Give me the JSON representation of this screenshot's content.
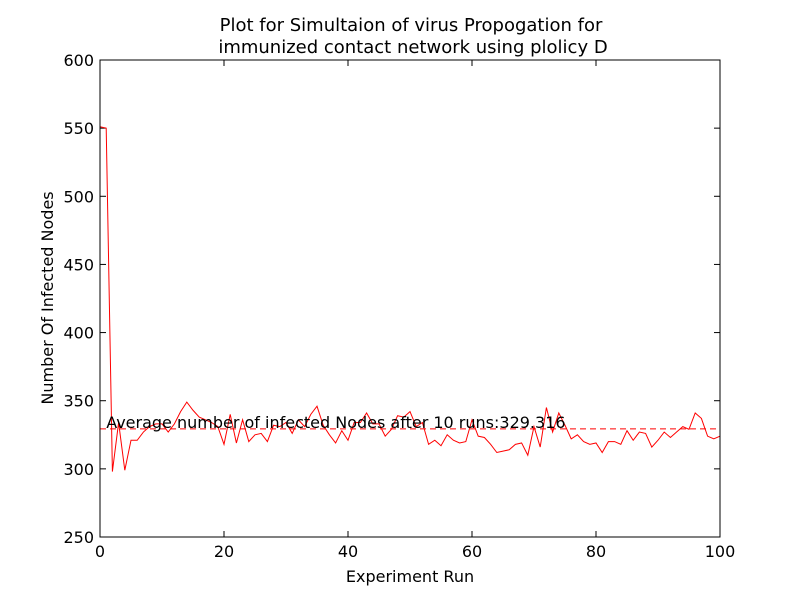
{
  "chart_data": {
    "type": "line",
    "title": "Plot for Simultaion of virus Propogation for",
    "subtitle": "immunized contact network using plolicy D",
    "xlabel": "Experiment Run",
    "ylabel": "Number Of Infected Nodes",
    "xlim": [
      0,
      100
    ],
    "ylim": [
      250,
      600
    ],
    "xticks": [
      "0",
      "20",
      "40",
      "60",
      "80",
      "100"
    ],
    "yticks": [
      "250",
      "300",
      "350",
      "400",
      "450",
      "500",
      "550",
      "600"
    ],
    "grid": false,
    "line_color": "#ff0000",
    "average_line": {
      "y": 329.316,
      "color": "#ff0000",
      "style": "dashed"
    },
    "annotation": {
      "text": "Average number of infected Nodes after 10 runs:329.316",
      "x": 1,
      "y": 330
    },
    "series": [
      {
        "x": [
          0,
          1,
          2,
          3,
          4,
          5,
          6,
          7,
          8,
          9,
          10,
          11,
          12,
          13,
          14,
          15,
          16,
          17,
          18,
          19,
          20,
          21,
          22,
          23,
          24,
          25,
          26,
          27,
          28,
          29,
          30,
          31,
          32,
          33,
          34,
          35,
          36,
          37,
          38,
          39,
          40,
          41,
          42,
          43,
          44,
          45,
          46,
          47,
          48,
          49,
          50,
          51,
          52,
          53,
          54,
          55,
          56,
          57,
          58,
          59,
          60,
          61,
          62,
          63,
          64,
          65,
          66,
          67,
          68,
          69,
          70,
          71,
          72,
          73,
          74,
          75,
          76,
          77,
          78,
          79,
          80,
          81,
          82,
          83,
          84,
          85,
          86,
          87,
          88,
          89,
          90,
          91,
          92,
          93,
          94,
          95,
          96,
          97,
          98,
          99,
          100
        ],
        "values": [
          551,
          550,
          298,
          334,
          299,
          321,
          321,
          327,
          331,
          333,
          333,
          327,
          333,
          342,
          349,
          343,
          338,
          336,
          334,
          331,
          318,
          340,
          319,
          336,
          320,
          325,
          326,
          320,
          332,
          331,
          334,
          326,
          336,
          331,
          340,
          346,
          332,
          325,
          319,
          328,
          321,
          334,
          334,
          341,
          333,
          333,
          324,
          329,
          339,
          338,
          342,
          331,
          334,
          318,
          321,
          317,
          325,
          321,
          319,
          320,
          336,
          324,
          323,
          318,
          312,
          313,
          314,
          318,
          319,
          310,
          331,
          316,
          345,
          327,
          341,
          332,
          322,
          325,
          320,
          318,
          319,
          312,
          320,
          320,
          318,
          328,
          321,
          327,
          326,
          316,
          321,
          327,
          323,
          327,
          331,
          329,
          341,
          337,
          324,
          322,
          324
        ]
      }
    ]
  }
}
